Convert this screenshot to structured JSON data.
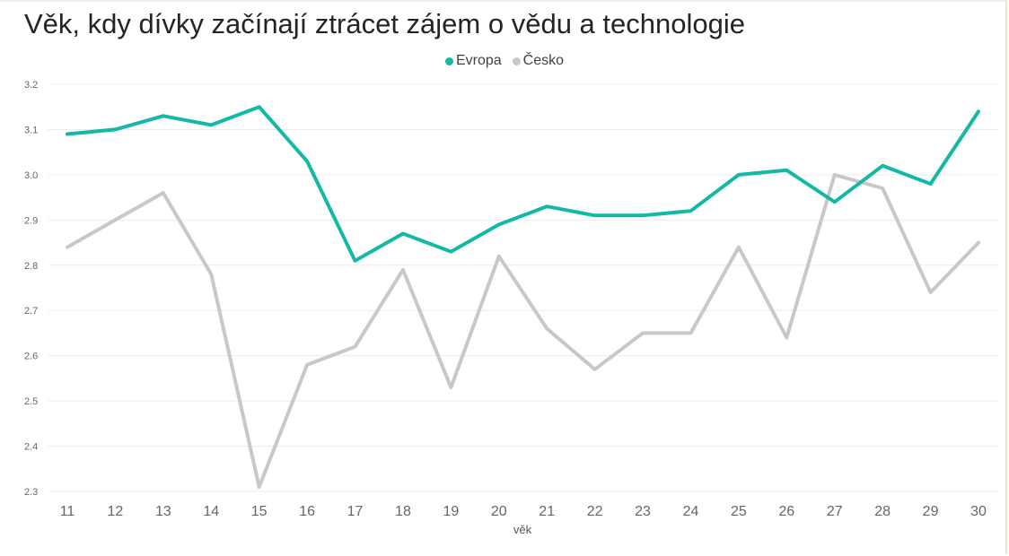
{
  "chart_data": {
    "type": "line",
    "title": "Věk, kdy dívky začínají ztrácet zájem o vědu a technologie",
    "xlabel": "věk",
    "ylabel": "",
    "categories": [
      "11",
      "12",
      "13",
      "14",
      "15",
      "16",
      "17",
      "18",
      "19",
      "20",
      "21",
      "22",
      "23",
      "24",
      "25",
      "26",
      "27",
      "28",
      "29",
      "30"
    ],
    "yticks": [
      "2.3",
      "2.4",
      "2.5",
      "2.6",
      "2.7",
      "2.8",
      "2.9",
      "3.0",
      "3.1",
      "3.2"
    ],
    "ylim": [
      2.3,
      3.2
    ],
    "grid": true,
    "legend_position": "top-center",
    "series": [
      {
        "name": "Evropa",
        "color": "#14b8a6",
        "values": [
          3.09,
          3.1,
          3.13,
          3.11,
          3.15,
          3.03,
          2.81,
          2.87,
          2.83,
          2.89,
          2.93,
          2.91,
          2.91,
          2.92,
          3.0,
          3.01,
          2.94,
          3.02,
          2.98,
          3.14
        ]
      },
      {
        "name": "Česko",
        "color": "#c8c8c8",
        "values": [
          2.84,
          2.9,
          2.96,
          2.78,
          2.31,
          2.58,
          2.62,
          2.79,
          2.53,
          2.82,
          2.66,
          2.57,
          2.65,
          2.65,
          2.84,
          2.64,
          3.0,
          2.97,
          2.74,
          2.85
        ]
      }
    ]
  }
}
